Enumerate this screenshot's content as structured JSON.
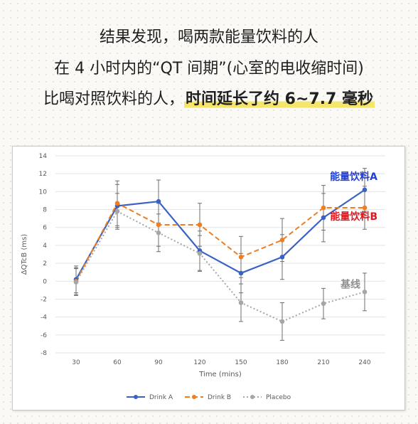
{
  "headline": {
    "line1": "结果发现，喝两款能量饮料的人",
    "line2": "在 4 小时内的“QT 间期”(心室的电收缩时间)",
    "line3_prefix": "比喝对照饮料的人，",
    "line3_highlight": "时间延长了约 6~7.7 毫秒"
  },
  "colors": {
    "drink_a": "#3a62c3",
    "drink_b": "#ef7d22",
    "placebo": "#a6a6a6",
    "highlight": "#f5e56b",
    "annotation_a": "#1f3fd6",
    "annotation_b": "#e4161b",
    "annotation_placebo": "#8e8e8e"
  },
  "chart_data": {
    "type": "line",
    "x": [
      30,
      60,
      90,
      120,
      150,
      180,
      210,
      240
    ],
    "xlabel": "Time (mins)",
    "ylabel": "ΔQTcB (ms)",
    "ylim": [
      -8,
      14
    ],
    "yticks": [
      -8,
      -6,
      -4,
      -2,
      0,
      2,
      4,
      6,
      8,
      10,
      12,
      14
    ],
    "grid": true,
    "legend_position": "bottom",
    "series": [
      {
        "name": "Drink A",
        "color": "#3a62c3",
        "style": "solid",
        "values": [
          0.2,
          8.4,
          8.9,
          3.4,
          0.9,
          2.7,
          7.1,
          10.2
        ],
        "err": [
          1.5,
          2.4,
          2.4,
          2.2,
          2.2,
          2.5,
          2.7,
          2.4
        ]
      },
      {
        "name": "Drink B",
        "color": "#ef7d22",
        "style": "dashed",
        "values": [
          0.0,
          8.7,
          6.3,
          6.3,
          2.7,
          4.6,
          8.2,
          8.2
        ],
        "err": [
          1.5,
          2.5,
          2.4,
          2.4,
          2.3,
          2.4,
          2.5,
          2.4
        ]
      },
      {
        "name": "Placebo",
        "color": "#a6a6a6",
        "style": "dotted",
        "values": [
          -0.1,
          7.8,
          5.4,
          3.1,
          -2.4,
          -4.5,
          -2.5,
          -1.2
        ],
        "err": [
          1.5,
          2.0,
          2.1,
          2.0,
          2.1,
          2.1,
          1.7,
          2.1
        ]
      }
    ],
    "annotations": [
      {
        "text": "能量饮料A",
        "series": "Drink A"
      },
      {
        "text": "能量饮料B",
        "series": "Drink B"
      },
      {
        "text": "基线",
        "series": "Placebo"
      }
    ]
  }
}
